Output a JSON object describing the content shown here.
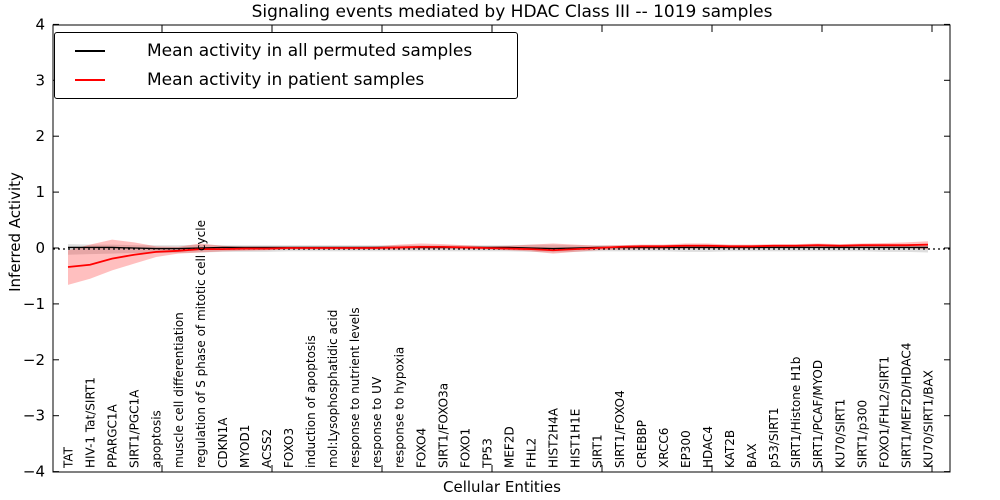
{
  "chart_data": {
    "type": "line",
    "title": "Signaling events mediated by HDAC Class III -- 1019 samples",
    "xlabel": "Cellular Entities",
    "ylabel": "Inferred Activity",
    "ylim": [
      -4,
      4
    ],
    "ytick_labels": [
      "4",
      "3",
      "2",
      "1",
      "0",
      "−1",
      "−2",
      "−3",
      "−4"
    ],
    "grid": false,
    "zero_line": true,
    "legend_position": "upper left",
    "categories": [
      "TAT",
      "HIV-1 Tat/SIRT1",
      "PPARGC1A",
      "SIRT1/PGC1A",
      "apoptosis",
      "muscle cell differentiation",
      "regulation of S phase of mitotic cell cycle",
      "CDKN1A",
      "MYOD1",
      "ACSS2",
      "FOXO3",
      "induction of apoptosis",
      "mol:Lysophosphatidic acid",
      "response to nutrient levels",
      "response to UV",
      "response to hypoxia",
      "FOXO4",
      "SIRT1/FOXO3a",
      "FOXO1",
      "TP53",
      "MEF2D",
      "FHL2",
      "HIST2H4A",
      "HIST1H1E",
      "SIRT1",
      "SIRT1/FOXO4",
      "CREBBP",
      "XRCC6",
      "EP300",
      "HDAC4",
      "KAT2B",
      "BAX",
      "p53/SIRT1",
      "SIRT1/Histone H1b",
      "SIRT1/PCAF/MYOD",
      "KU70/SIRT1",
      "SIRT1/p300",
      "FOXO1/FHL2/SIRT1",
      "SIRT1/MEF2D/HDAC4",
      "KU70/SIRT1/BAX"
    ],
    "series": [
      {
        "name": "Mean activity in all permuted samples",
        "color": "#000000",
        "band_color": "rgba(0,0,0,0.13)",
        "values": [
          0.01,
          0.01,
          0.01,
          0.0,
          -0.01,
          -0.01,
          0.0,
          0.01,
          0.01,
          0.01,
          0.01,
          0.01,
          0.01,
          0.01,
          0.01,
          0.01,
          0.01,
          0.01,
          0.01,
          0.01,
          0.01,
          0.0,
          -0.01,
          0.0,
          0.01,
          0.01,
          0.01,
          0.01,
          0.01,
          0.01,
          0.01,
          0.01,
          0.01,
          0.01,
          0.01,
          0.01,
          0.01,
          0.01,
          0.01,
          0.01
        ],
        "band_upper": [
          0.07,
          0.06,
          0.06,
          0.05,
          0.05,
          0.05,
          0.06,
          0.05,
          0.05,
          0.05,
          0.05,
          0.05,
          0.05,
          0.05,
          0.05,
          0.05,
          0.05,
          0.05,
          0.05,
          0.05,
          0.05,
          0.06,
          0.06,
          0.05,
          0.05,
          0.05,
          0.05,
          0.05,
          0.06,
          0.06,
          0.05,
          0.05,
          0.05,
          0.05,
          0.06,
          0.05,
          0.05,
          0.06,
          0.06,
          0.07
        ],
        "band_lower": [
          -0.12,
          -0.11,
          -0.1,
          -0.09,
          -0.09,
          -0.09,
          -0.08,
          -0.07,
          -0.07,
          -0.07,
          -0.06,
          -0.06,
          -0.06,
          -0.06,
          -0.06,
          -0.06,
          -0.06,
          -0.06,
          -0.06,
          -0.06,
          -0.06,
          -0.07,
          -0.08,
          -0.07,
          -0.06,
          -0.06,
          -0.06,
          -0.06,
          -0.07,
          -0.07,
          -0.06,
          -0.06,
          -0.06,
          -0.06,
          -0.06,
          -0.06,
          -0.06,
          -0.07,
          -0.07,
          -0.08
        ]
      },
      {
        "name": "Mean activity in patient samples",
        "color": "#ff0000",
        "band_color": "rgba(255,0,0,0.25)",
        "values": [
          -0.34,
          -0.3,
          -0.19,
          -0.12,
          -0.07,
          -0.05,
          -0.02,
          -0.02,
          -0.01,
          -0.01,
          0.0,
          0.0,
          0.0,
          0.0,
          0.0,
          0.01,
          0.02,
          0.02,
          0.01,
          0.0,
          -0.01,
          -0.02,
          -0.04,
          -0.02,
          0.0,
          0.02,
          0.03,
          0.03,
          0.04,
          0.04,
          0.03,
          0.03,
          0.04,
          0.04,
          0.05,
          0.04,
          0.05,
          0.05,
          0.05,
          0.06
        ],
        "band_upper": [
          -0.04,
          0.06,
          0.15,
          0.1,
          0.03,
          0.02,
          0.08,
          0.04,
          0.02,
          0.02,
          0.02,
          0.02,
          0.02,
          0.02,
          0.03,
          0.06,
          0.08,
          0.07,
          0.05,
          0.03,
          0.04,
          0.06,
          0.08,
          0.06,
          0.04,
          0.05,
          0.06,
          0.06,
          0.08,
          0.08,
          0.06,
          0.06,
          0.07,
          0.07,
          0.08,
          0.07,
          0.08,
          0.09,
          0.1,
          0.12
        ],
        "band_lower": [
          -0.66,
          -0.55,
          -0.4,
          -0.28,
          -0.16,
          -0.1,
          -0.08,
          -0.06,
          -0.05,
          -0.04,
          -0.03,
          -0.03,
          -0.03,
          -0.03,
          -0.03,
          -0.03,
          -0.02,
          -0.02,
          -0.02,
          -0.03,
          -0.04,
          -0.06,
          -0.1,
          -0.07,
          -0.04,
          -0.03,
          -0.02,
          -0.02,
          -0.01,
          -0.01,
          -0.01,
          -0.01,
          0.0,
          0.0,
          0.01,
          0.0,
          0.01,
          0.01,
          0.0,
          -0.02
        ]
      }
    ]
  }
}
